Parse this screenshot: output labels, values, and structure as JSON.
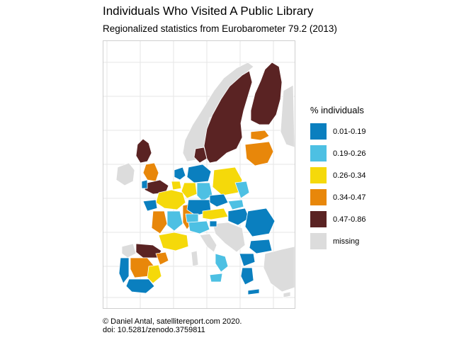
{
  "title": "Individuals Who Visited A Public Library",
  "subtitle": "Regionalized statistics from Eurobarometer 79.2 (2013)",
  "legend": {
    "title": "% individuals",
    "items": [
      {
        "label": "0.01-0.19",
        "color": "#0a7fbf"
      },
      {
        "label": "0.19-0.26",
        "color": "#4dc0e3"
      },
      {
        "label": "0.26-0.34",
        "color": "#f5d90a"
      },
      {
        "label": "0.34-0.47",
        "color": "#e8870a"
      },
      {
        "label": "0.47-0.86",
        "color": "#5a2323"
      },
      {
        "label": "missing",
        "color": "#dcdcdc"
      }
    ]
  },
  "caption": {
    "line1": "© Daniel Antal, satellitereport.com 2020.",
    "line2": "doi: 10.5281/zenodo.3759811"
  },
  "map": {
    "gridlines": true,
    "regions": [
      "Nordic countries",
      "British Isles",
      "Iberia",
      "France",
      "Benelux",
      "Germany",
      "Central Europe",
      "Baltics",
      "Italy",
      "Balkans",
      "Greece",
      "Turkey"
    ]
  }
}
